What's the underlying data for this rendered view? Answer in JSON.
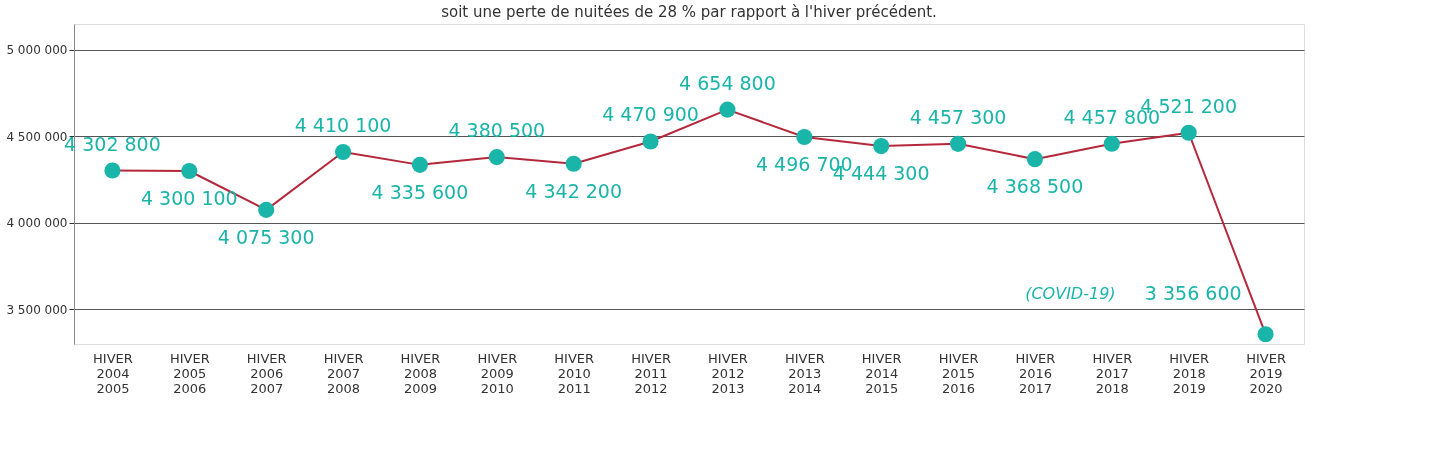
{
  "chart_data": {
    "type": "line",
    "title": "soit une perte de nuitées de 28 % par rapport à l'hiver précédent.",
    "categories": [
      "HIVER 2004 2005",
      "HIVER 2005 2006",
      "HIVER 2006 2007",
      "HIVER 2007 2008",
      "HIVER 2008 2009",
      "HIVER 2009 2010",
      "HIVER 2010 2011",
      "HIVER 2011 2012",
      "HIVER 2012 2013",
      "HIVER 2013 2014",
      "HIVER 2014 2015",
      "HIVER 2015 2016",
      "HIVER 2016 2017",
      "HIVER 2017 2018",
      "HIVER 2018 2019",
      "HIVER 2019 2020"
    ],
    "series": [
      {
        "color": "#b5283c",
        "colors": [
          "#1ab5a9",
          "#1ab5a9",
          "#1ab5a9",
          "#1ab5a9",
          "#1ab5a9",
          "#1ab5a9",
          "#1ab5a9",
          "#1ab5a9",
          "#1ab5a9",
          "#1ab5a9",
          "#1ab5a9",
          "#1ab5a9",
          "#1ab5a9",
          "#1ab5a9",
          "#1ab5a9",
          "#1ab5a9"
        ],
        "values": [
          4302800,
          4300100,
          4075300,
          4410100,
          4335600,
          4380500,
          4342200,
          4470900,
          4654800,
          4496700,
          4444300,
          4457300,
          4368500,
          4457800,
          4521200,
          3356600
        ],
        "value_labels": [
          "4 302 800",
          "4 300 100",
          "4 075 300",
          "4 410 100",
          "4 335 600",
          "4 380 500",
          "4 342 200",
          "4 470 900",
          "4 654 800",
          "4 496 700",
          "4 444 300",
          "4 457 300",
          "4 368 500",
          "4 457 800",
          "4 521 200",
          "3 356 600"
        ]
      }
    ],
    "ylim": [
      3300000,
      5150000
    ],
    "yticks": [
      {
        "value": 3500000,
        "label": "3 500 000"
      },
      {
        "value": 4000000,
        "label": "4 000 000"
      },
      {
        "value": 4500000,
        "label": "4 500 000"
      },
      {
        "value": 5000000,
        "label": "5 000 000"
      }
    ],
    "grid": "y",
    "marker": "circle",
    "line_style": "solid",
    "annotations": [
      "(COVID-19)"
    ]
  }
}
